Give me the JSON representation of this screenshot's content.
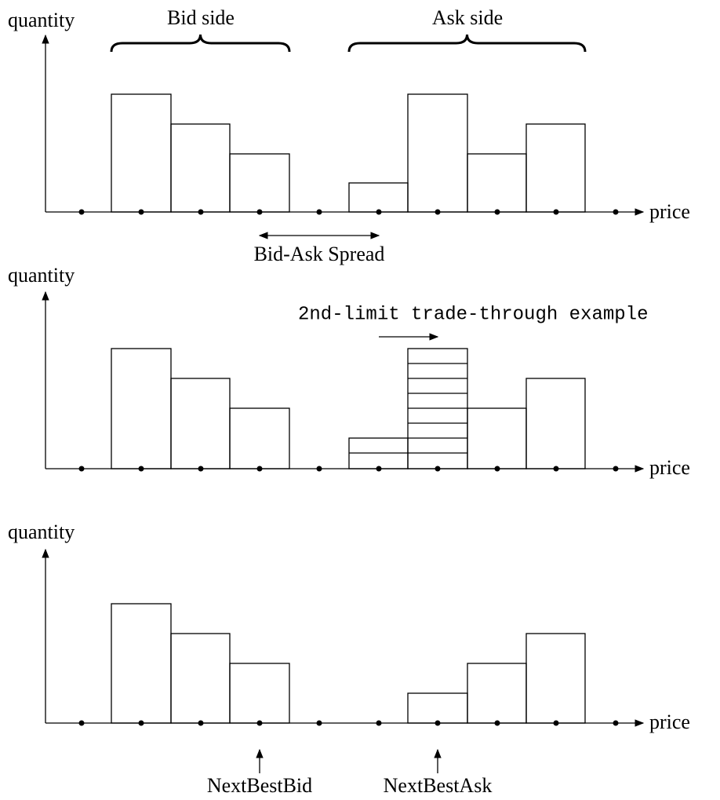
{
  "panels": [
    {
      "y_label": "quantity",
      "x_label": "price",
      "bid_label": "Bid side",
      "ask_label": "Ask side",
      "spread_label": "Bid-Ask Spread"
    },
    {
      "y_label": "quantity",
      "x_label": "price",
      "annotation": "2nd-limit trade-through example"
    },
    {
      "y_label": "quantity",
      "x_label": "price",
      "next_best_bid": "NextBestBid",
      "next_best_ask": "NextBestAsk"
    }
  ]
}
